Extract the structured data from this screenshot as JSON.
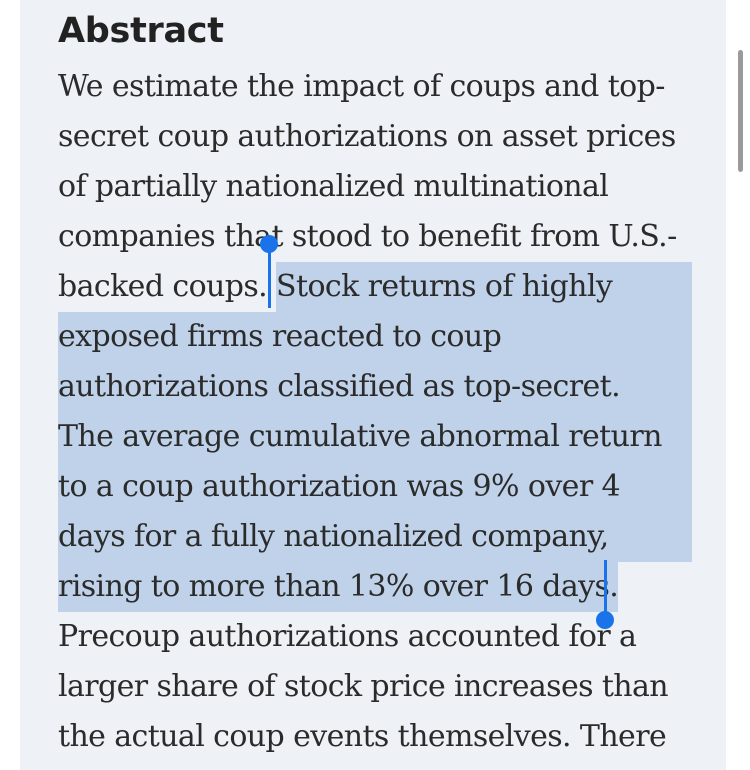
{
  "abstract": {
    "heading": "Abstract",
    "lines": [
      {
        "before": "We estimate the impact of coups and top-",
        "selected": "",
        "after": ""
      },
      {
        "before": "secret coup authorizations on asset prices",
        "selected": "",
        "after": ""
      },
      {
        "before": "of partially nationalized multinational",
        "selected": "",
        "after": ""
      },
      {
        "before": "companies that stood to benefit from U.S.-",
        "selected": "",
        "after": ""
      },
      {
        "before": "backed coups. ",
        "selected": "Stock returns of highly",
        "after": ""
      },
      {
        "before": "",
        "selected": "exposed firms reacted to coup",
        "after": ""
      },
      {
        "before": "",
        "selected": "authorizations classified as top-secret.",
        "after": ""
      },
      {
        "before": "",
        "selected": "The average cumulative abnormal return",
        "after": ""
      },
      {
        "before": "",
        "selected": "to a coup authorization was 9% over 4",
        "after": ""
      },
      {
        "before": "",
        "selected": "days for a fully nationalized company,",
        "after": ""
      },
      {
        "before": "",
        "selected": "rising to more than 13% over 16 days.",
        "after": ""
      },
      {
        "before": "Precoup authorizations accounted for a",
        "selected": "",
        "after": ""
      },
      {
        "before": "larger share of stock price increases than",
        "selected": "",
        "after": ""
      },
      {
        "before": "the actual coup events themselves. There",
        "selected": "",
        "after": ""
      }
    ]
  },
  "colors": {
    "panel_background": "#eef2f6",
    "selection_highlight": "#bfd2e9",
    "selection_handle": "#1a73e8",
    "text": "#2b2b2b"
  }
}
